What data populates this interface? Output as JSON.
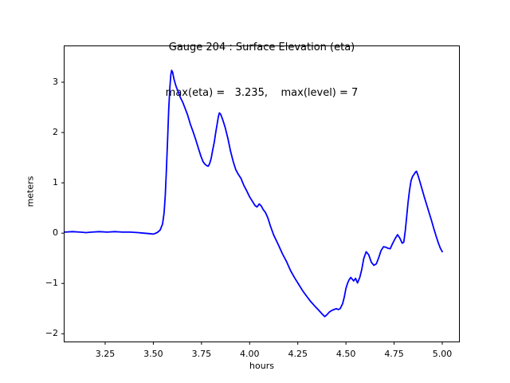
{
  "chart_data": {
    "type": "line",
    "title": "Gauge 204 : Surface Elevation (eta)",
    "subtitle": "max(eta) =   3.235,    max(level) = 7",
    "xlabel": "hours",
    "ylabel": "meters",
    "xlim": [
      3.035,
      5.091
    ],
    "ylim": [
      -2.17,
      3.73
    ],
    "xticks": [
      3.25,
      3.5,
      3.75,
      4.0,
      4.25,
      4.5,
      4.75,
      5.0
    ],
    "xtick_labels": [
      "3.25",
      "3.50",
      "3.75",
      "4.00",
      "4.25",
      "4.50",
      "4.75",
      "5.00"
    ],
    "yticks": [
      -2,
      -1,
      0,
      1,
      2,
      3
    ],
    "ytick_labels": [
      "−2",
      "−1",
      "0",
      "1",
      "2",
      "3"
    ],
    "grid": false,
    "legend": null,
    "annotations": {
      "max_eta": 3.235,
      "max_level": 7
    },
    "axis_color": "#000000",
    "series": [
      {
        "name": "eta",
        "color": "#0000ff",
        "points": [
          [
            3.04,
            0.02
          ],
          [
            3.08,
            0.03
          ],
          [
            3.12,
            0.02
          ],
          [
            3.15,
            0.01
          ],
          [
            3.18,
            0.02
          ],
          [
            3.22,
            0.03
          ],
          [
            3.26,
            0.02
          ],
          [
            3.3,
            0.03
          ],
          [
            3.34,
            0.02
          ],
          [
            3.38,
            0.02
          ],
          [
            3.42,
            0.01
          ],
          [
            3.45,
            0.0
          ],
          [
            3.48,
            -0.01
          ],
          [
            3.5,
            -0.02
          ],
          [
            3.52,
            0.01
          ],
          [
            3.535,
            0.06
          ],
          [
            3.548,
            0.18
          ],
          [
            3.556,
            0.4
          ],
          [
            3.562,
            0.75
          ],
          [
            3.568,
            1.25
          ],
          [
            3.574,
            1.85
          ],
          [
            3.58,
            2.45
          ],
          [
            3.586,
            2.9
          ],
          [
            3.591,
            3.15
          ],
          [
            3.595,
            3.235
          ],
          [
            3.6,
            3.2
          ],
          [
            3.608,
            3.05
          ],
          [
            3.618,
            2.92
          ],
          [
            3.63,
            2.8
          ],
          [
            3.64,
            2.7
          ],
          [
            3.652,
            2.61
          ],
          [
            3.665,
            2.48
          ],
          [
            3.678,
            2.35
          ],
          [
            3.692,
            2.17
          ],
          [
            3.706,
            2.02
          ],
          [
            3.72,
            1.86
          ],
          [
            3.733,
            1.7
          ],
          [
            3.747,
            1.53
          ],
          [
            3.758,
            1.42
          ],
          [
            3.768,
            1.37
          ],
          [
            3.778,
            1.34
          ],
          [
            3.785,
            1.33
          ],
          [
            3.792,
            1.38
          ],
          [
            3.8,
            1.48
          ],
          [
            3.808,
            1.65
          ],
          [
            3.816,
            1.8
          ],
          [
            3.824,
            2.0
          ],
          [
            3.831,
            2.16
          ],
          [
            3.838,
            2.32
          ],
          [
            3.843,
            2.39
          ],
          [
            3.85,
            2.36
          ],
          [
            3.859,
            2.27
          ],
          [
            3.873,
            2.1
          ],
          [
            3.887,
            1.88
          ],
          [
            3.901,
            1.63
          ],
          [
            3.915,
            1.42
          ],
          [
            3.928,
            1.26
          ],
          [
            3.941,
            1.17
          ],
          [
            3.955,
            1.09
          ],
          [
            3.97,
            0.95
          ],
          [
            3.985,
            0.84
          ],
          [
            4.0,
            0.72
          ],
          [
            4.015,
            0.63
          ],
          [
            4.028,
            0.55
          ],
          [
            4.038,
            0.52
          ],
          [
            4.05,
            0.58
          ],
          [
            4.06,
            0.54
          ],
          [
            4.07,
            0.47
          ],
          [
            4.082,
            0.41
          ],
          [
            4.095,
            0.3
          ],
          [
            4.108,
            0.14
          ],
          [
            4.125,
            -0.04
          ],
          [
            4.148,
            -0.22
          ],
          [
            4.17,
            -0.41
          ],
          [
            4.192,
            -0.57
          ],
          [
            4.213,
            -0.75
          ],
          [
            4.234,
            -0.89
          ],
          [
            4.255,
            -1.02
          ],
          [
            4.276,
            -1.15
          ],
          [
            4.297,
            -1.26
          ],
          [
            4.317,
            -1.36
          ],
          [
            4.338,
            -1.45
          ],
          [
            4.358,
            -1.53
          ],
          [
            4.375,
            -1.6
          ],
          [
            4.39,
            -1.66
          ],
          [
            4.402,
            -1.62
          ],
          [
            4.413,
            -1.57
          ],
          [
            4.425,
            -1.54
          ],
          [
            4.437,
            -1.52
          ],
          [
            4.45,
            -1.5
          ],
          [
            4.46,
            -1.52
          ],
          [
            4.47,
            -1.5
          ],
          [
            4.483,
            -1.4
          ],
          [
            4.492,
            -1.26
          ],
          [
            4.5,
            -1.1
          ],
          [
            4.508,
            -1.0
          ],
          [
            4.516,
            -0.93
          ],
          [
            4.525,
            -0.88
          ],
          [
            4.54,
            -0.95
          ],
          [
            4.55,
            -0.9
          ],
          [
            4.56,
            -0.99
          ],
          [
            4.572,
            -0.88
          ],
          [
            4.582,
            -0.72
          ],
          [
            4.592,
            -0.51
          ],
          [
            4.605,
            -0.37
          ],
          [
            4.618,
            -0.43
          ],
          [
            4.632,
            -0.58
          ],
          [
            4.645,
            -0.64
          ],
          [
            4.658,
            -0.61
          ],
          [
            4.67,
            -0.49
          ],
          [
            4.682,
            -0.35
          ],
          [
            4.695,
            -0.27
          ],
          [
            4.706,
            -0.28
          ],
          [
            4.718,
            -0.3
          ],
          [
            4.73,
            -0.31
          ],
          [
            4.742,
            -0.21
          ],
          [
            4.755,
            -0.11
          ],
          [
            4.768,
            -0.03
          ],
          [
            4.78,
            -0.1
          ],
          [
            4.792,
            -0.2
          ],
          [
            4.8,
            -0.18
          ],
          [
            4.808,
            0.05
          ],
          [
            4.815,
            0.32
          ],
          [
            4.822,
            0.6
          ],
          [
            4.83,
            0.85
          ],
          [
            4.838,
            1.04
          ],
          [
            4.846,
            1.13
          ],
          [
            4.854,
            1.17
          ],
          [
            4.86,
            1.21
          ],
          [
            4.866,
            1.23
          ],
          [
            4.874,
            1.15
          ],
          [
            4.884,
            1.02
          ],
          [
            4.896,
            0.86
          ],
          [
            4.908,
            0.7
          ],
          [
            4.92,
            0.55
          ],
          [
            4.932,
            0.4
          ],
          [
            4.944,
            0.25
          ],
          [
            4.956,
            0.09
          ],
          [
            4.968,
            -0.06
          ],
          [
            4.98,
            -0.2
          ],
          [
            4.99,
            -0.3
          ],
          [
            5.0,
            -0.37
          ]
        ]
      }
    ]
  }
}
